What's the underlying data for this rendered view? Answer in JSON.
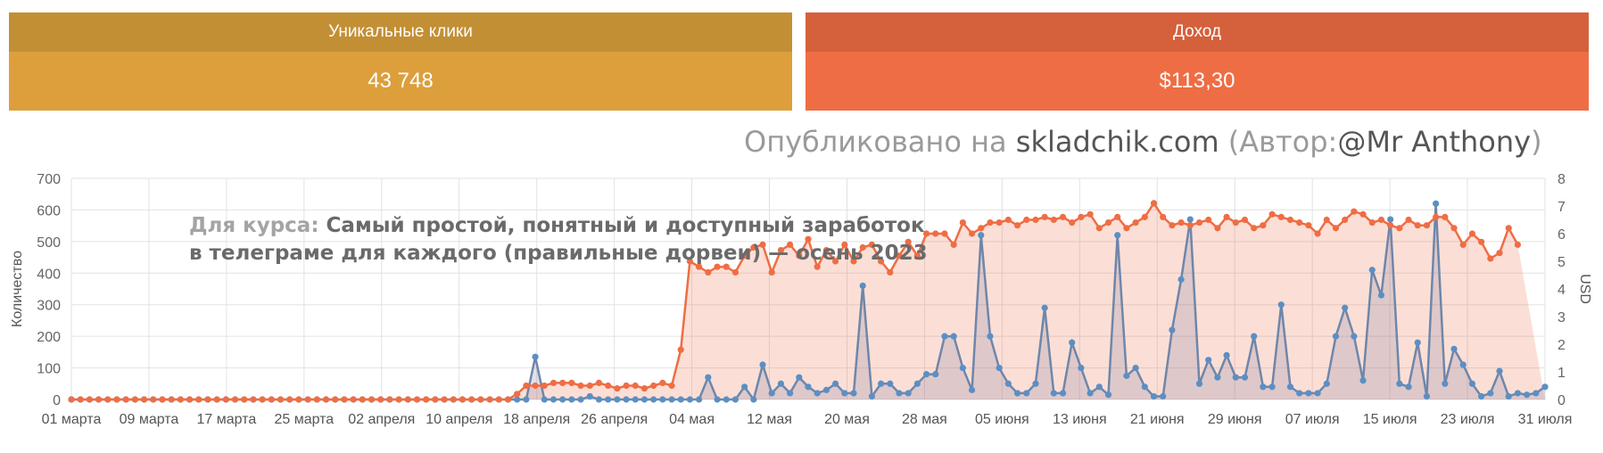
{
  "cards": {
    "clicks": {
      "label": "Уникальные клики",
      "value": "43 748"
    },
    "income": {
      "label": "Доход",
      "value": "$113,30"
    }
  },
  "watermark": {
    "prefix": "Опубликовано на",
    "site": "skladchik.com",
    "author_open": "(Автор:",
    "author": "@Mr Anthony",
    "author_close": ")"
  },
  "overlay": {
    "prefix": "Для курса:",
    "line1": "Самый простой, понятный и доступный заработок",
    "line2": "в телеграме для каждого (правильные дорвеи) — осень 2023"
  },
  "colors": {
    "clicks": "#5b8fc4",
    "clicks_line": "#6f86aa",
    "income": "#ef6d44",
    "income_fill": "rgba(239,109,68,0.22)",
    "clicks_fill": "rgba(120,120,160,0.22)"
  },
  "chart_data": {
    "type": "line",
    "x_tick_labels": [
      "01 марта",
      "09 марта",
      "17 марта",
      "25 марта",
      "02 апреля",
      "10 апреля",
      "18 апреля",
      "26 апреля",
      "04 мая",
      "12 мая",
      "20 мая",
      "28 мая",
      "05 июня",
      "13 июня",
      "21 июня",
      "29 июня",
      "07 июля",
      "15 июля",
      "23 июля",
      "31 июля"
    ],
    "ylabel_left": "Количество",
    "ylabel_right": "USD",
    "ylim_left": [
      0,
      700
    ],
    "yticks_left": [
      0,
      100,
      200,
      300,
      400,
      500,
      600,
      700
    ],
    "ylim_right": [
      0,
      8
    ],
    "yticks_right": [
      0,
      1,
      2,
      3,
      4,
      5,
      6,
      7,
      8
    ],
    "grid": true,
    "series": [
      {
        "axis": "left",
        "values": [
          0,
          0,
          0,
          0,
          0,
          0,
          0,
          0,
          0,
          0,
          0,
          0,
          0,
          0,
          0,
          0,
          0,
          0,
          0,
          0,
          0,
          0,
          0,
          0,
          0,
          0,
          0,
          0,
          0,
          0,
          0,
          0,
          0,
          0,
          0,
          0,
          0,
          0,
          0,
          0,
          0,
          0,
          0,
          0,
          0,
          0,
          0,
          0,
          0,
          0,
          0,
          135,
          0,
          0,
          0,
          0,
          0,
          10,
          0,
          0,
          0,
          0,
          0,
          0,
          0,
          0,
          0,
          0,
          0,
          0,
          70,
          0,
          0,
          0,
          40,
          0,
          110,
          20,
          50,
          20,
          70,
          40,
          20,
          30,
          50,
          20,
          20,
          360,
          10,
          50,
          50,
          20,
          20,
          50,
          80,
          80,
          200,
          200,
          100,
          30,
          520,
          200,
          100,
          50,
          20,
          20,
          50,
          290,
          20,
          20,
          180,
          100,
          20,
          40,
          15,
          520,
          75,
          100,
          40,
          10,
          10,
          220,
          380,
          570,
          50,
          125,
          70,
          140,
          70,
          70,
          200,
          40,
          40,
          300,
          40,
          20,
          20,
          20,
          50,
          200,
          290,
          200,
          60,
          410,
          330,
          570,
          50,
          40,
          180,
          10,
          620,
          50,
          160,
          110,
          50,
          10,
          20,
          90,
          10,
          20,
          15,
          20,
          40
        ]
      },
      {
        "axis": "right",
        "values": [
          0,
          0,
          0,
          0,
          0,
          0,
          0,
          0,
          0,
          0,
          0,
          0,
          0,
          0,
          0,
          0,
          0,
          0,
          0,
          0,
          0,
          0,
          0,
          0,
          0,
          0,
          0,
          0,
          0,
          0,
          0,
          0,
          0,
          0,
          0,
          0,
          0,
          0,
          0,
          0,
          0,
          0,
          0,
          0,
          0,
          0,
          0,
          0,
          0,
          0.2,
          0.5,
          0.5,
          0.5,
          0.6,
          0.6,
          0.6,
          0.5,
          0.5,
          0.6,
          0.5,
          0.4,
          0.5,
          0.5,
          0.4,
          0.5,
          0.6,
          0.5,
          1.8,
          5,
          4.8,
          4.6,
          4.8,
          4.8,
          4.6,
          5.2,
          5.5,
          5.6,
          4.6,
          5.4,
          5.6,
          5.2,
          5.8,
          4.8,
          5.4,
          5,
          5.6,
          5,
          5.5,
          5.6,
          5,
          4.6,
          5.2,
          5.7,
          5.2,
          6,
          6,
          6,
          5.6,
          6.4,
          6,
          6.2,
          6.4,
          6.4,
          6.5,
          6.3,
          6.5,
          6.5,
          6.6,
          6.5,
          6.6,
          6.4,
          6.6,
          6.7,
          6.2,
          6.4,
          6.6,
          6.2,
          6.4,
          6.6,
          7.1,
          6.6,
          6.3,
          6.4,
          6.3,
          6.4,
          6.5,
          6.2,
          6.6,
          6.4,
          6.5,
          6.2,
          6.3,
          6.7,
          6.6,
          6.5,
          6.4,
          6.3,
          6.0,
          6.5,
          6.2,
          6.5,
          6.8,
          6.7,
          6.4,
          6.5,
          6.3,
          6.2,
          6.5,
          6.3,
          6.3,
          6.6,
          6.6,
          6.2,
          5.6,
          6.0,
          5.7,
          5.1,
          5.3,
          6.2,
          5.6
        ]
      }
    ]
  }
}
